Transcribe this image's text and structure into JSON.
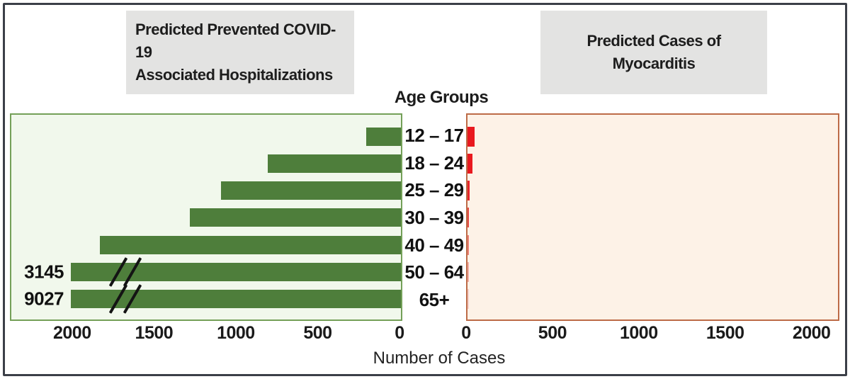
{
  "header": {
    "left_title": "Predicted Prevented COVID-19\nAssociated  Hospitalizations",
    "right_title": "Predicted Cases of\nMyocarditis",
    "age_axis_label": "Age Groups",
    "x_axis_label": "Number of Cases"
  },
  "chart_data": [
    {
      "type": "bar",
      "panel": "left",
      "title": "Predicted Prevented COVID-19 Associated Hospitalizations",
      "direction": "right-to-left",
      "categories": [
        "12 – 17",
        "18 – 24",
        "25 – 29",
        "30 – 39",
        "40 – 49",
        "50 – 64",
        "65+"
      ],
      "values": [
        210,
        815,
        1100,
        1290,
        1840,
        3145,
        9027
      ],
      "value_labels": [
        null,
        null,
        null,
        null,
        null,
        "3145",
        "9027"
      ],
      "broken_axis_bars": [
        "50 – 64",
        "65+"
      ],
      "axis_ticks": [
        2000,
        1500,
        1000,
        500,
        0
      ],
      "xlim_shown": [
        0,
        2380
      ],
      "display_cap": 2015,
      "grid": false,
      "bar_color": "#4e7e3b",
      "panel_bg": "#f1f8ec",
      "panel_border": "#74a058"
    },
    {
      "type": "bar",
      "panel": "right",
      "title": "Predicted Cases of Myocarditis",
      "direction": "left-to-right",
      "categories": [
        "12 – 17",
        "18 – 24",
        "25 – 29",
        "30 – 39",
        "40 – 49",
        "50 – 64",
        "65+"
      ],
      "values": [
        40,
        27,
        14,
        10,
        8,
        6,
        5
      ],
      "axis_ticks": [
        0,
        500,
        1000,
        1500,
        2000
      ],
      "xlim_shown": [
        0,
        2145
      ],
      "grid": false,
      "bar_colors": [
        "#e9191f",
        "#e9191f",
        "#e7252a",
        "#e64a45",
        "#ec8177",
        "#f2aea6",
        "#f6d0ca"
      ],
      "panel_bg": "#fdf2e7",
      "panel_border": "#bd6b47"
    }
  ]
}
